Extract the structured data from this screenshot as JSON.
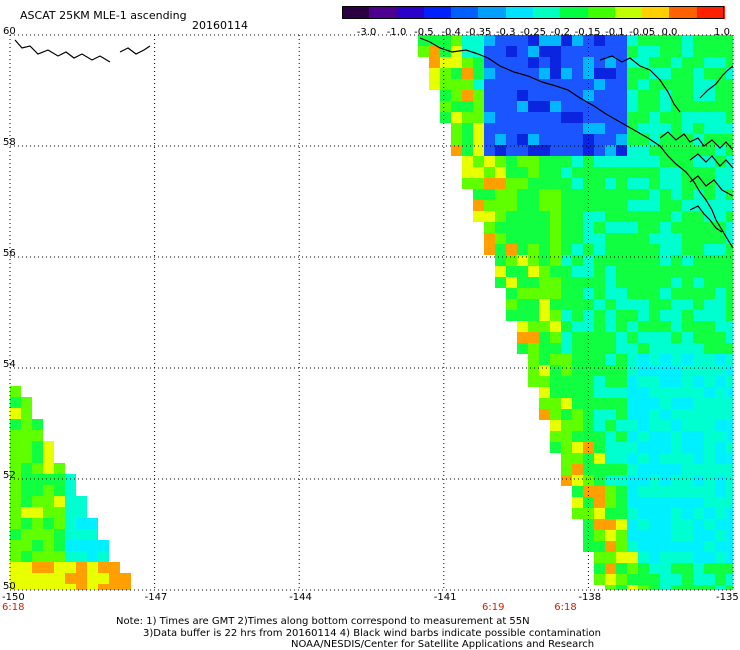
{
  "header": {
    "title": "ASCAT 25KM MLE-1 ascending",
    "date": "20160114"
  },
  "colorbar": {
    "labels": [
      "-3.0",
      "-1.0",
      "-0.5",
      "-0.4",
      "-0.35",
      "-0.3",
      "-0.25",
      "-0.2",
      "-0.15",
      "-0.1",
      "-0.05",
      "0.0",
      "1.0"
    ],
    "colors": [
      "#2a0040",
      "#4b0090",
      "#2a00c8",
      "#0020ff",
      "#0060ff",
      "#00a0ff",
      "#00e0ff",
      "#00ffc0",
      "#00ff40",
      "#40ff00",
      "#c0ff00",
      "#ffd000",
      "#ff6000",
      "#ff2000"
    ]
  },
  "map": {
    "lat_labels": [
      "60",
      "58",
      "56",
      "54",
      "52",
      "50"
    ],
    "lon_labels": [
      "-150",
      "-147",
      "-144",
      "-141",
      "-138",
      "-135"
    ],
    "time_labels": [
      {
        "text": "6:18",
        "lon": "-150"
      },
      {
        "text": "6:19",
        "lon": "-140"
      },
      {
        "text": "6:18",
        "lon": "-138.5"
      }
    ]
  },
  "footer": {
    "line1": "Note: 1) Times are GMT 2)Times along bottom correspond to measurement at 55N",
    "line2": "3)Data buffer is 22 hrs from 20160114 4) Black wind barbs indicate possible contamination",
    "line3": "NOAA/NESDIS/Center for Satellite Applications and Research"
  }
}
